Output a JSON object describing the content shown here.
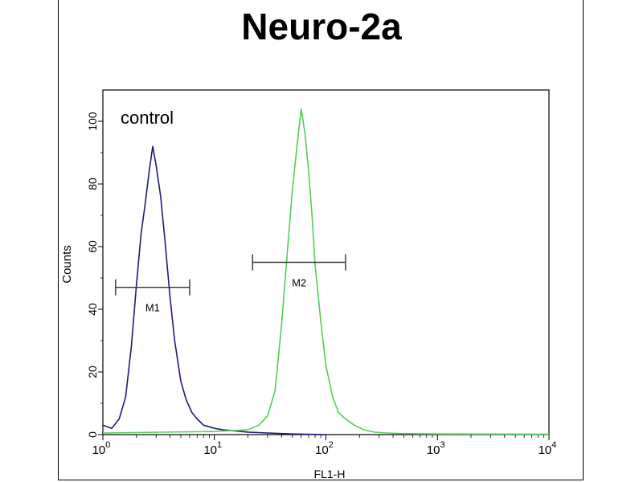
{
  "chart_data": {
    "type": "line",
    "title": "Neuro-2a",
    "xlabel": "FL1-H",
    "ylabel": "Counts",
    "xscale": "log",
    "xlim": [
      1,
      10000
    ],
    "ylim": [
      0,
      110
    ],
    "x_ticks": [
      {
        "value": 1,
        "base": "10",
        "exp": "0"
      },
      {
        "value": 10,
        "base": "10",
        "exp": "1"
      },
      {
        "value": 100,
        "base": "10",
        "exp": "2"
      },
      {
        "value": 1000,
        "base": "10",
        "exp": "3"
      },
      {
        "value": 10000,
        "base": "10",
        "exp": "4"
      }
    ],
    "y_ticks": [
      "0",
      "20",
      "40",
      "60",
      "80",
      "100"
    ],
    "annotation": "control",
    "series": [
      {
        "color": "#1c1c7a",
        "x": [
          1.0,
          1.2,
          1.4,
          1.6,
          1.8,
          2.0,
          2.2,
          2.4,
          2.6,
          2.8,
          3.0,
          3.3,
          3.6,
          4.0,
          4.4,
          5.0,
          5.6,
          6.3,
          7.0,
          8.0,
          9.0,
          10.0,
          12.0,
          15.0,
          20.0,
          30.0,
          50.0,
          100.0
        ],
        "y": [
          3,
          2,
          5,
          12,
          28,
          48,
          64,
          74,
          84,
          92,
          86,
          76,
          62,
          44,
          30,
          17,
          11,
          7,
          5,
          3,
          2.5,
          2,
          1.5,
          1.2,
          0.8,
          0.5,
          0.2,
          0
        ]
      },
      {
        "color": "#55cc55",
        "x": [
          1.0,
          10.0,
          20.0,
          25.0,
          30.0,
          35.0,
          40.0,
          45.0,
          50.0,
          55.0,
          60.0,
          65.0,
          70.0,
          75.0,
          80.0,
          90.0,
          100.0,
          115.0,
          130.0,
          150.0,
          180.0,
          220.0,
          270.0,
          350.0,
          500.0,
          1000.0,
          10000.0
        ],
        "y": [
          0.5,
          1.0,
          1.5,
          3,
          6,
          14,
          35,
          58,
          78,
          92,
          104,
          96,
          84,
          70,
          54,
          36,
          22,
          12,
          7,
          5,
          3,
          1.5,
          0.8,
          0.5,
          0.3,
          0.2,
          0.1
        ]
      }
    ],
    "markers": [
      {
        "label": "M1",
        "x_start": 1.3,
        "x_end": 6.0,
        "y": 47
      },
      {
        "label": "M2",
        "x_start": 22.0,
        "x_end": 150.0,
        "y": 55
      }
    ]
  }
}
